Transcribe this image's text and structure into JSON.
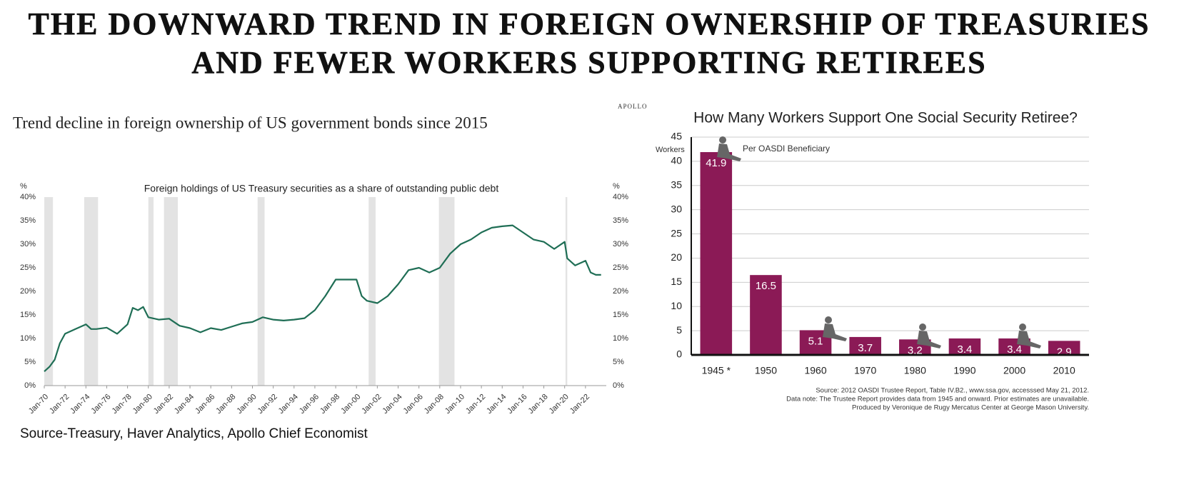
{
  "title_lines": [
    "THE DOWNWARD TREND IN FOREIGN OWNERSHIP OF TREASURIES",
    "AND FEWER WORKERS SUPPORTING RETIREES"
  ],
  "chart_data": [
    {
      "type": "line",
      "brand": "APOLLO",
      "subtitle": "Trend decline in foreign ownership of US government bonds since 2015",
      "title": "Foreign holdings of US Treasury securities as a share of outstanding public debt",
      "source": "Source-Treasury, Haver Analytics, Apollo Chief Economist",
      "y_label": "%",
      "y2_label": "%",
      "color": "#1f6e55",
      "grid": false,
      "x": [
        "Jan-70",
        "Jul-70",
        "Jan-71",
        "Jul-71",
        "Jan-72",
        "Jan-73",
        "Jan-74",
        "Jul-74",
        "Jan-75",
        "Jan-76",
        "Jan-77",
        "Jan-78",
        "Jul-78",
        "Jan-79",
        "Jul-79",
        "Jan-80",
        "Jan-81",
        "Jan-82",
        "Jan-83",
        "Jan-84",
        "Jan-85",
        "Jan-86",
        "Jan-87",
        "Jan-88",
        "Jan-89",
        "Jan-90",
        "Jan-91",
        "Jan-92",
        "Jan-93",
        "Jan-94",
        "Jan-95",
        "Jan-96",
        "Jan-97",
        "Jan-98",
        "Jan-99",
        "Jan-00",
        "Jul-00",
        "Jan-01",
        "Jan-02",
        "Jan-03",
        "Jan-04",
        "Jan-05",
        "Jan-06",
        "Jan-07",
        "Jan-08",
        "Jan-09",
        "Jan-10",
        "Jan-11",
        "Jan-12",
        "Jan-13",
        "Jan-14",
        "Jan-15",
        "Jan-16",
        "Jan-17",
        "Jan-18",
        "Jan-19",
        "Jan-20",
        "Apr-20",
        "Jan-21",
        "Jan-22",
        "Jul-22",
        "Jan-23",
        "Jul-23"
      ],
      "values": [
        3,
        4,
        5.5,
        9,
        11,
        12,
        13,
        12,
        12,
        12.3,
        11,
        13,
        16.5,
        16,
        16.7,
        14.5,
        14,
        14.2,
        12.7,
        12.2,
        11.3,
        12.2,
        11.8,
        12.5,
        13.2,
        13.5,
        14.5,
        14,
        13.8,
        14,
        14.3,
        16,
        19,
        22.5,
        22.5,
        22.5,
        19,
        18,
        17.5,
        19,
        21.5,
        24.5,
        25,
        24,
        25,
        28,
        30,
        31,
        32.5,
        33.5,
        33.8,
        34,
        32.5,
        31,
        30.5,
        29,
        30.5,
        27,
        25.5,
        26.5,
        24,
        23.5,
        23.5
      ],
      "shaded_periods": [
        [
          "Jan-70",
          "Nov-70"
        ],
        [
          "Nov-73",
          "Mar-75"
        ],
        [
          "Jan-80",
          "Jul-80"
        ],
        [
          "Jul-81",
          "Nov-82"
        ],
        [
          "Jul-90",
          "Mar-91"
        ],
        [
          "Mar-01",
          "Nov-01"
        ],
        [
          "Dec-07",
          "Jun-09"
        ],
        [
          "Feb-20",
          "Apr-20"
        ]
      ],
      "xlim": [
        "Jan-70",
        "Jan-24"
      ],
      "xticks": [
        "Jan-70",
        "Jan-72",
        "Jan-74",
        "Jan-76",
        "Jan-78",
        "Jan-80",
        "Jan-82",
        "Jan-84",
        "Jan-86",
        "Jan-88",
        "Jan-90",
        "Jan-92",
        "Jan-94",
        "Jan-96",
        "Jan-98",
        "Jan-00",
        "Jan-02",
        "Jan-04",
        "Jan-06",
        "Jan-08",
        "Jan-10",
        "Jan-12",
        "Jan-14",
        "Jan-16",
        "Jan-18",
        "Jan-20",
        "Jan-22"
      ],
      "ylim": [
        0,
        40
      ],
      "yticks": [
        {
          "value": 0,
          "label": "0%"
        },
        {
          "value": 5,
          "label": "5%"
        },
        {
          "value": 10,
          "label": "10%"
        },
        {
          "value": 15,
          "label": "15%"
        },
        {
          "value": 20,
          "label": "20%"
        },
        {
          "value": 25,
          "label": "25%"
        },
        {
          "value": 30,
          "label": "30%"
        },
        {
          "value": 35,
          "label": "35%"
        },
        {
          "value": 40,
          "label": "40%"
        }
      ],
      "y2lim": [
        0,
        40
      ],
      "y2ticks": [
        {
          "value": 0,
          "label": "0%"
        },
        {
          "value": 5,
          "label": "5%"
        },
        {
          "value": 10,
          "label": "10%"
        },
        {
          "value": 15,
          "label": "15%"
        },
        {
          "value": 20,
          "label": "20%"
        },
        {
          "value": 25,
          "label": "25%"
        },
        {
          "value": 30,
          "label": "30%"
        },
        {
          "value": 35,
          "label": "35%"
        },
        {
          "value": 40,
          "label": "40%"
        }
      ]
    },
    {
      "type": "bar",
      "title": "How Many Workers Support One Social Security Retiree?",
      "y_label": "Workers",
      "annotation": "Per OASDI Beneficiary",
      "color": "#8b1a56",
      "grid": true,
      "categories": [
        "1945 *",
        "1950",
        "1960",
        "1970",
        "1980",
        "1990",
        "2000",
        "2010"
      ],
      "values": [
        41.9,
        16.5,
        5.1,
        3.7,
        3.2,
        3.4,
        3.4,
        2.9
      ],
      "ylim": [
        0,
        45
      ],
      "yticks": [
        0,
        5,
        10,
        15,
        20,
        25,
        30,
        35,
        40,
        45
      ],
      "notes": [
        "Source: 2012 OASDI Trustee Report, Table IV.B2., www.ssa.gov, accesssed May 21, 2012.",
        "Data note: The Trustee Report provides data from 1945 and onward. Prior estimates are unavailable.",
        "Produced by Veronique de Rugy Mercatus Center at George Mason University."
      ]
    }
  ]
}
